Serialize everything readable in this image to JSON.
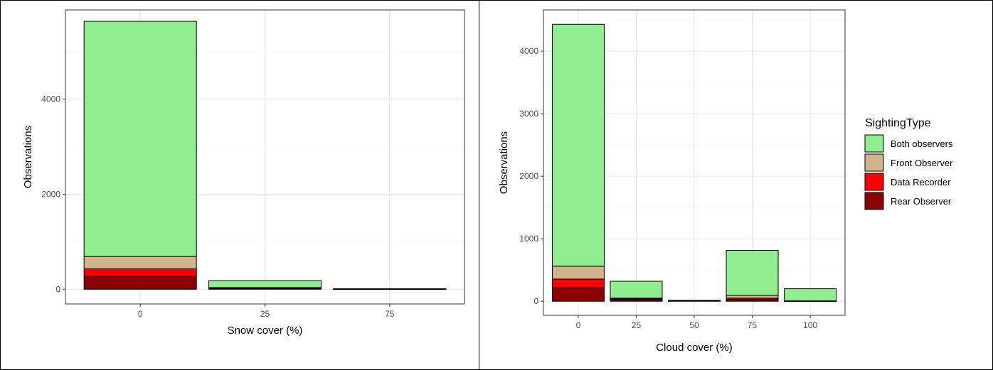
{
  "legend": {
    "title": "SightingType",
    "placement": "right",
    "entries": [
      {
        "name": "Both observers",
        "color": "#90EE90"
      },
      {
        "name": "Front Observer",
        "color": "#D2B48C"
      },
      {
        "name": "Data Recorder",
        "color": "#FF0000"
      },
      {
        "name": "Rear Observer",
        "color": "#8B0000"
      }
    ]
  },
  "chart_data": [
    {
      "type": "bar",
      "stacked": true,
      "grid": true,
      "xlabel": "Snow cover (%)",
      "ylabel": "Observations",
      "ylim": [
        -310,
        5880
      ],
      "yticks": [
        0,
        2000,
        4000
      ],
      "categories": [
        "0",
        "25",
        "75"
      ],
      "series": [
        {
          "name": "Rear Observer",
          "values": [
            270,
            15,
            2
          ]
        },
        {
          "name": "Data Recorder",
          "values": [
            160,
            10,
            2
          ]
        },
        {
          "name": "Front Observer",
          "values": [
            260,
            10,
            2
          ]
        },
        {
          "name": "Both observers",
          "values": [
            4950,
            145,
            4
          ]
        }
      ]
    },
    {
      "type": "bar",
      "stacked": true,
      "grid": true,
      "xlabel": "Cloud cover (%)",
      "ylabel": "Observations",
      "ylim": [
        -225,
        4660
      ],
      "yticks": [
        0,
        1000,
        2000,
        3000,
        4000
      ],
      "categories": [
        "0",
        "25",
        "50",
        "75",
        "100"
      ],
      "series": [
        {
          "name": "Rear Observer",
          "values": [
            215,
            25,
            5,
            30,
            3
          ]
        },
        {
          "name": "Data Recorder",
          "values": [
            140,
            15,
            3,
            20,
            2
          ]
        },
        {
          "name": "Front Observer",
          "values": [
            205,
            10,
            2,
            45,
            2
          ]
        },
        {
          "name": "Both observers",
          "values": [
            3870,
            270,
            5,
            720,
            193
          ]
        }
      ]
    }
  ]
}
